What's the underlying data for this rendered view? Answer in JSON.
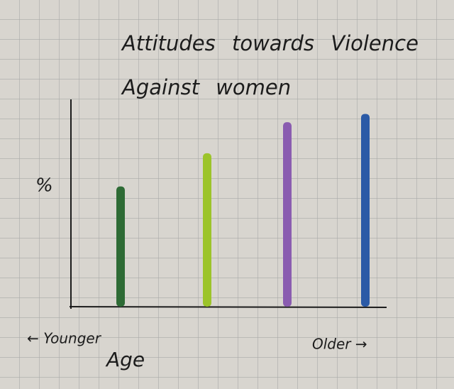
{
  "chart_data": {
    "type": "bar",
    "title": "Attitudes towards Violence Against women",
    "y_label": "%",
    "x_label": "Age",
    "annotations": [
      "← Younger",
      "Older →"
    ],
    "categories": [
      null,
      null,
      null,
      null
    ],
    "values": [
      58,
      74,
      89,
      93
    ],
    "colors": [
      "#2e6b35",
      "#9cc42a",
      "#8a5cb0",
      "#2b5aa6"
    ],
    "ylim": [
      0,
      100
    ]
  }
}
